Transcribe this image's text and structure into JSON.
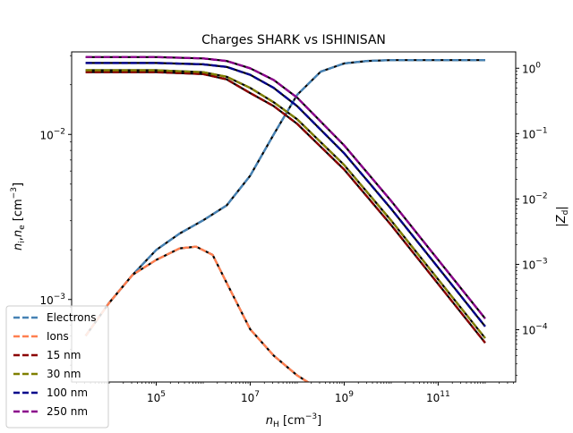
{
  "chart_data": {
    "type": "line",
    "title": "Charges SHARK vs ISHINISAN",
    "xlabel": "n_H [cm^-3]",
    "ylabel_left": "n_i, n_e [cm^-3]",
    "ylabel_right": "|Z_d|",
    "x_scale": "log",
    "y_scale": "log",
    "xlim_log10": [
      3.2,
      12.65
    ],
    "ylim_left_log10": [
      -3.5,
      -1.5
    ],
    "ylim_right_log10": [
      -4.8,
      0.25
    ],
    "x_ticks": [
      {
        "base": "10",
        "exp": "5",
        "log": 5
      },
      {
        "base": "10",
        "exp": "7",
        "log": 7
      },
      {
        "base": "10",
        "exp": "9",
        "log": 9
      },
      {
        "base": "10",
        "exp": "11",
        "log": 11
      }
    ],
    "y_left_ticks": [
      {
        "base": "10",
        "exp": "−2",
        "log": -2
      },
      {
        "base": "10",
        "exp": "−3",
        "log": -3
      }
    ],
    "y_right_ticks": [
      {
        "base": "10",
        "exp": "0",
        "log": 0
      },
      {
        "base": "10",
        "exp": "−1",
        "log": -1
      },
      {
        "base": "10",
        "exp": "−2",
        "log": -2
      },
      {
        "base": "10",
        "exp": "−3",
        "log": -3
      },
      {
        "base": "10",
        "exp": "−4",
        "log": -4
      }
    ],
    "legend_position": "lower-left",
    "series": [
      {
        "name": "Electrons",
        "axis": "left",
        "color": "#4682b4",
        "width": 2.4,
        "log_x": [
          3.5,
          4.0,
          4.5,
          5.0,
          5.5,
          6.0,
          6.5,
          7.0,
          7.5,
          8.0,
          8.5,
          9.0,
          9.5,
          10.0,
          11.0,
          12.0
        ],
        "log_y": [
          -3.22,
          -3.02,
          -2.85,
          -2.7,
          -2.6,
          -2.52,
          -2.43,
          -2.25,
          -2.0,
          -1.76,
          -1.62,
          -1.57,
          -1.555,
          -1.55,
          -1.55,
          -1.55
        ]
      },
      {
        "name": "Ions",
        "axis": "left",
        "color": "#ff7f50",
        "width": 2.4,
        "log_x": [
          3.5,
          4.0,
          4.5,
          5.0,
          5.5,
          5.85,
          6.2,
          6.5,
          7.0,
          7.5,
          8.0,
          8.5,
          9.0,
          9.5,
          10.0,
          11.0,
          12.0
        ],
        "log_y": [
          -3.22,
          -3.02,
          -2.85,
          -2.76,
          -2.69,
          -2.68,
          -2.73,
          -2.9,
          -3.18,
          -3.34,
          -3.46,
          -3.55,
          -3.62,
          -3.65,
          -3.66,
          -3.665,
          -3.67
        ]
      },
      {
        "name": "15 nm",
        "axis": "right",
        "color": "#8b0000",
        "width": 2.4,
        "log_x": [
          3.5,
          5.0,
          6.0,
          6.5,
          7.0,
          7.5,
          8.0,
          9.0,
          10.0,
          11.0,
          12.0
        ],
        "log_y": [
          -0.06,
          -0.06,
          -0.09,
          -0.17,
          -0.38,
          -0.58,
          -0.85,
          -1.55,
          -2.4,
          -3.3,
          -4.2
        ]
      },
      {
        "name": "30 nm",
        "axis": "right",
        "color": "#808000",
        "width": 2.4,
        "log_x": [
          3.5,
          5.0,
          6.0,
          6.5,
          7.0,
          7.5,
          8.0,
          9.0,
          10.0,
          11.0,
          12.0
        ],
        "log_y": [
          -0.03,
          -0.03,
          -0.06,
          -0.13,
          -0.3,
          -0.52,
          -0.78,
          -1.48,
          -2.33,
          -3.23,
          -4.13
        ]
      },
      {
        "name": "100 nm",
        "axis": "right",
        "color": "#00008b",
        "width": 2.4,
        "log_x": [
          3.5,
          5.0,
          6.0,
          6.5,
          7.0,
          7.5,
          8.0,
          9.0,
          10.0,
          11.0,
          12.0
        ],
        "log_y": [
          0.08,
          0.08,
          0.06,
          0.02,
          -0.1,
          -0.3,
          -0.58,
          -1.3,
          -2.15,
          -3.05,
          -3.95
        ]
      },
      {
        "name": "250 nm",
        "axis": "right",
        "color": "#8b008b",
        "width": 2.4,
        "log_x": [
          3.5,
          5.0,
          6.0,
          6.5,
          7.0,
          7.5,
          8.0,
          9.0,
          10.0,
          11.0,
          12.0
        ],
        "log_y": [
          0.17,
          0.17,
          0.15,
          0.11,
          0.0,
          -0.18,
          -0.45,
          -1.18,
          -2.03,
          -2.93,
          -3.83
        ]
      }
    ]
  }
}
